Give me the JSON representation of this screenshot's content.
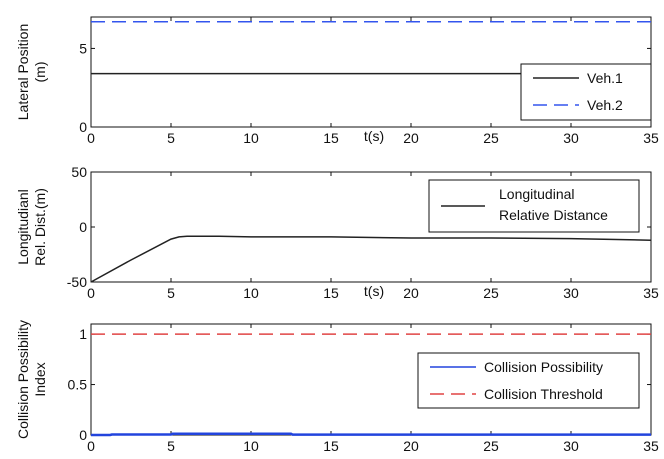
{
  "chart_data": [
    {
      "type": "line",
      "title": "",
      "xlabel": "t(s)",
      "ylabel_lines": [
        "Lateral Position",
        "(m)"
      ],
      "xlim": [
        0,
        35
      ],
      "ylim": [
        0,
        7
      ],
      "xticks": [
        0,
        5,
        10,
        15,
        20,
        25,
        30,
        35
      ],
      "yticks": [
        0,
        5
      ],
      "legend": "bottom-right",
      "series": [
        {
          "name": "Veh.1",
          "color": "#222222",
          "dash": "solid",
          "x": [
            0,
            35
          ],
          "y": [
            3.4,
            3.4
          ]
        },
        {
          "name": "Veh.2",
          "color": "#3355ee",
          "dash": "dashed",
          "x": [
            0,
            35
          ],
          "y": [
            6.7,
            6.7
          ]
        }
      ]
    },
    {
      "type": "line",
      "title": "",
      "xlabel": "t(s)",
      "ylabel_lines": [
        "Longitudianl",
        "Rel. Dist.(m)"
      ],
      "xlim": [
        0,
        35
      ],
      "ylim": [
        -50,
        50
      ],
      "xticks": [
        0,
        5,
        10,
        15,
        20,
        25,
        30,
        35
      ],
      "yticks": [
        -50,
        0,
        50
      ],
      "legend": "top-right",
      "legend_lines": [
        "Longitudinal",
        "Relative Distance"
      ],
      "series": [
        {
          "name": "Longitudinal Relative Distance",
          "color": "#222222",
          "dash": "solid",
          "x": [
            0,
            2.5,
            5,
            5.5,
            6,
            8,
            10,
            15,
            20,
            25,
            30,
            35
          ],
          "y": [
            -50,
            -30,
            -11,
            -9,
            -8.5,
            -8.5,
            -9,
            -9,
            -10,
            -10,
            -10.5,
            -12
          ]
        }
      ]
    },
    {
      "type": "line",
      "title": "",
      "xlabel": "",
      "ylabel_lines": [
        "Collision Possibility",
        "Index"
      ],
      "xlim": [
        0,
        35
      ],
      "ylim": [
        0,
        1.1
      ],
      "xticks": [
        0,
        5,
        10,
        15,
        20,
        25,
        30,
        35
      ],
      "yticks": [
        0,
        0.5,
        1
      ],
      "ytick_labels": [
        "0",
        "0.5",
        "1"
      ],
      "legend": "bottom-right",
      "series": [
        {
          "name": "Collision Possibility",
          "color": "#2244dd",
          "dash": "solid",
          "x": [
            0,
            1.2,
            1.3,
            5,
            5.1,
            12.5,
            12.6,
            35
          ],
          "y": [
            0,
            0,
            0.005,
            0.005,
            0.012,
            0.012,
            0.004,
            0.004
          ]
        },
        {
          "name": "Collision Threshold",
          "color": "#e04444",
          "dash": "dashed",
          "x": [
            0,
            35
          ],
          "y": [
            1,
            1
          ]
        }
      ]
    }
  ]
}
